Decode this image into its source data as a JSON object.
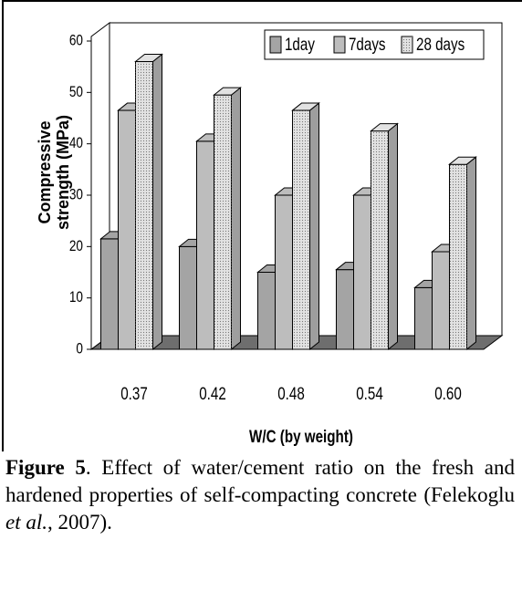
{
  "chart_data": {
    "type": "bar",
    "y_label": [
      "Compressive",
      "strength (MPa)"
    ],
    "x_label": "W/C (by weight)",
    "categories": [
      "0.37",
      "0.42",
      "0.48",
      "0.54",
      "0.60"
    ],
    "series": [
      {
        "name": "1day",
        "color": "#a4a4a4",
        "values": [
          21.5,
          20,
          15,
          15.5,
          12
        ]
      },
      {
        "name": "7days",
        "color": "#bdbdbd",
        "values": [
          46.5,
          40.5,
          30,
          30,
          19
        ]
      },
      {
        "name": "28 days",
        "color": "#e2e2e2",
        "values": [
          56,
          49.5,
          46.5,
          42.5,
          36
        ]
      }
    ],
    "ylim": [
      0,
      60
    ],
    "yticks": [
      0,
      10,
      20,
      30,
      40,
      50,
      60
    ],
    "legend": "top-right"
  },
  "caption": {
    "label": "Figure 5",
    "text": ". Effect of water/cement ratio on the fresh and hardened properties of self-compacting concrete (Felekoglu ",
    "italic": "et al.",
    "end": ", 2007)."
  }
}
